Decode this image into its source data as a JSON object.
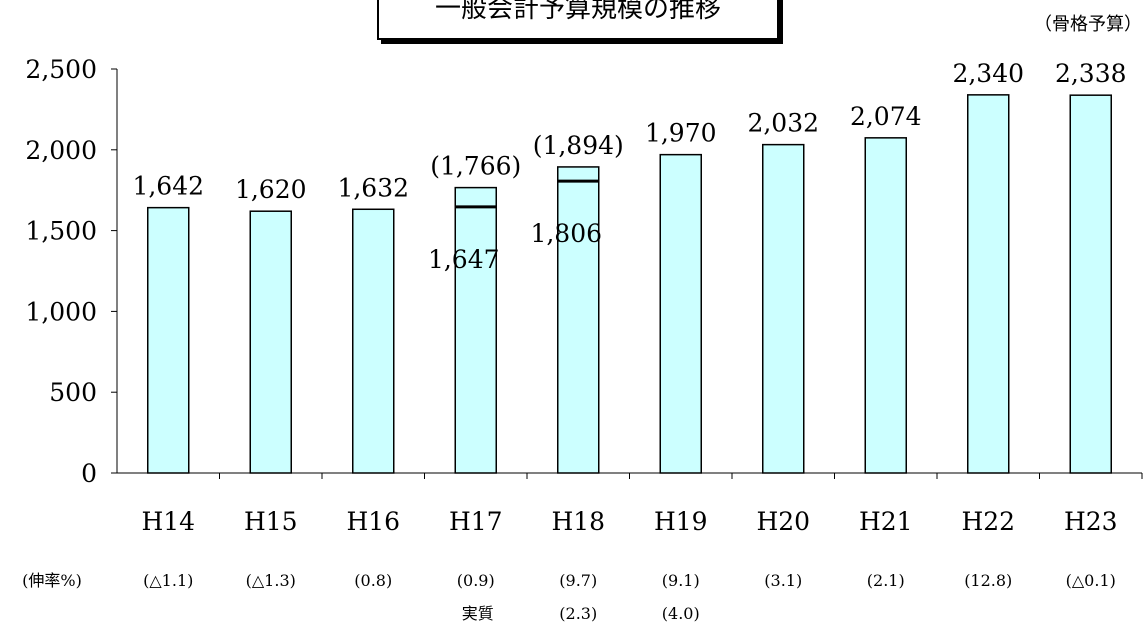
{
  "chart_data": {
    "type": "bar",
    "title": "一般会計予算規模の推移",
    "note": "（骨格予算）",
    "categories": [
      "H14",
      "H15",
      "H16",
      "H17",
      "H18",
      "H19",
      "H20",
      "H21",
      "H22",
      "H23"
    ],
    "values": [
      1642,
      1620,
      1632,
      1766,
      1894,
      1970,
      2032,
      2074,
      2340,
      2338
    ],
    "value_labels": [
      "1,642",
      "1,620",
      "1,632",
      "(1,766)",
      "(1,894)",
      "1,970",
      "2,032",
      "2,074",
      "2,340",
      "2,338"
    ],
    "real_values": [
      {
        "category": "H17",
        "value": 1647,
        "label": "1,647"
      },
      {
        "category": "H18",
        "value": 1806,
        "label": "1,806"
      }
    ],
    "ylim": [
      0,
      2500
    ],
    "yticks": [
      0,
      500,
      1000,
      1500,
      2000,
      2500
    ],
    "ytick_labels": [
      "0",
      "500",
      "1,000",
      "1,500",
      "2,000",
      "2,500"
    ],
    "growth_label": "(伸率%)",
    "growth_rates": [
      "(△1.1)",
      "(△1.3)",
      "(0.8)",
      "(0.9)",
      "(9.7)",
      "(9.1)",
      "(3.1)",
      "(2.1)",
      "(12.8)",
      "(△0.1)"
    ],
    "real_growth_label": "実質",
    "real_growth_rates": [
      {
        "category": "H18",
        "label": "(2.3)"
      },
      {
        "category": "H19",
        "label": "(4.0)"
      }
    ],
    "bar_color": "#ccffff",
    "bar_edge": "#000000",
    "grid": false
  }
}
